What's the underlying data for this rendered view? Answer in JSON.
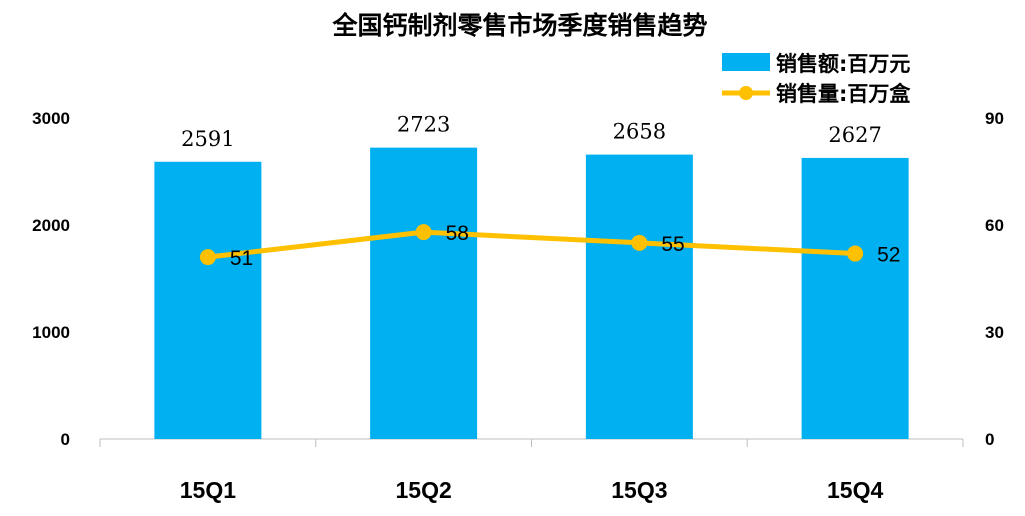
{
  "chart_data": {
    "type": "bar",
    "title": "全国钙制剂零售市场季度销售趋势",
    "categories": [
      "15Q1",
      "15Q2",
      "15Q3",
      "15Q4"
    ],
    "series": [
      {
        "name": "销售额:百万元",
        "type": "bar",
        "axis": "left",
        "color": "#00b0f0",
        "values": [
          2591,
          2723,
          2658,
          2627
        ]
      },
      {
        "name": "销售量:百万盒",
        "type": "line",
        "axis": "right",
        "color": "#ffc000",
        "values": [
          51,
          58,
          55,
          52
        ]
      }
    ],
    "y_left": {
      "ylim": [
        0,
        3000
      ],
      "ticks": [
        "0",
        "1000",
        "2000",
        "3000"
      ]
    },
    "y_right": {
      "ylim": [
        0,
        90
      ],
      "ticks": [
        "0",
        "30",
        "60",
        "90"
      ]
    },
    "grid": false,
    "legend_position": "top-right"
  }
}
